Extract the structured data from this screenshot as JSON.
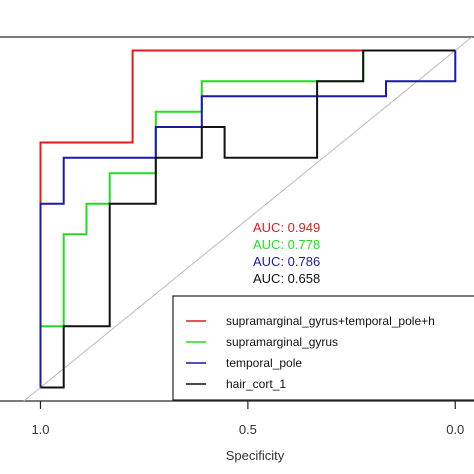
{
  "chart_data": {
    "type": "line",
    "xlabel": "Specificity",
    "x_reversed": true,
    "xlim": [
      1.1,
      -0.05
    ],
    "ylim": [
      -0.04,
      1.04
    ],
    "x_ticks": [
      {
        "value": 1.0,
        "label": "1.0"
      },
      {
        "value": 0.5,
        "label": "0.5"
      },
      {
        "value": 0.0,
        "label": "0.0"
      }
    ],
    "diagonal": true,
    "series": [
      {
        "name": "supramarginal_gyrus+temporal_pole+h",
        "color": "#e41a1c",
        "auc_label": "AUC: 0.949",
        "points": [
          [
            1.0,
            0.0
          ],
          [
            1.0,
            0.727
          ],
          [
            0.889,
            0.727
          ],
          [
            0.778,
            0.727
          ],
          [
            0.778,
            1.0
          ],
          [
            0.0,
            1.0
          ]
        ]
      },
      {
        "name": "supramarginal_gyrus",
        "color": "#22dd22",
        "auc_label": "AUC: 0.778",
        "points": [
          [
            1.0,
            0.0
          ],
          [
            1.0,
            0.182
          ],
          [
            0.944,
            0.182
          ],
          [
            0.944,
            0.455
          ],
          [
            0.889,
            0.455
          ],
          [
            0.889,
            0.545
          ],
          [
            0.833,
            0.545
          ],
          [
            0.833,
            0.636
          ],
          [
            0.722,
            0.636
          ],
          [
            0.722,
            0.818
          ],
          [
            0.611,
            0.818
          ],
          [
            0.611,
            0.909
          ],
          [
            0.5,
            0.909
          ],
          [
            0.222,
            0.909
          ],
          [
            0.222,
            1.0
          ],
          [
            0.0,
            1.0
          ]
        ]
      },
      {
        "name": "temporal_pole",
        "color": "#1a1aaa",
        "auc_label": "AUC: 0.786",
        "points": [
          [
            1.0,
            0.0
          ],
          [
            1.0,
            0.545
          ],
          [
            0.944,
            0.545
          ],
          [
            0.944,
            0.682
          ],
          [
            0.833,
            0.682
          ],
          [
            0.722,
            0.682
          ],
          [
            0.722,
            0.773
          ],
          [
            0.611,
            0.773
          ],
          [
            0.611,
            0.864
          ],
          [
            0.167,
            0.864
          ],
          [
            0.167,
            0.909
          ],
          [
            0.0,
            0.909
          ],
          [
            0.0,
            1.0
          ]
        ]
      },
      {
        "name": "hair_cort_1",
        "color": "#111111",
        "auc_label": "AUC: 0.658",
        "points": [
          [
            1.0,
            0.0
          ],
          [
            0.944,
            0.0
          ],
          [
            0.944,
            0.182
          ],
          [
            0.833,
            0.182
          ],
          [
            0.833,
            0.545
          ],
          [
            0.722,
            0.545
          ],
          [
            0.722,
            0.682
          ],
          [
            0.611,
            0.682
          ],
          [
            0.611,
            0.773
          ],
          [
            0.556,
            0.773
          ],
          [
            0.556,
            0.682
          ],
          [
            0.333,
            0.682
          ],
          [
            0.333,
            0.909
          ],
          [
            0.222,
            0.909
          ],
          [
            0.222,
            1.0
          ],
          [
            0.0,
            1.0
          ]
        ]
      }
    ]
  }
}
